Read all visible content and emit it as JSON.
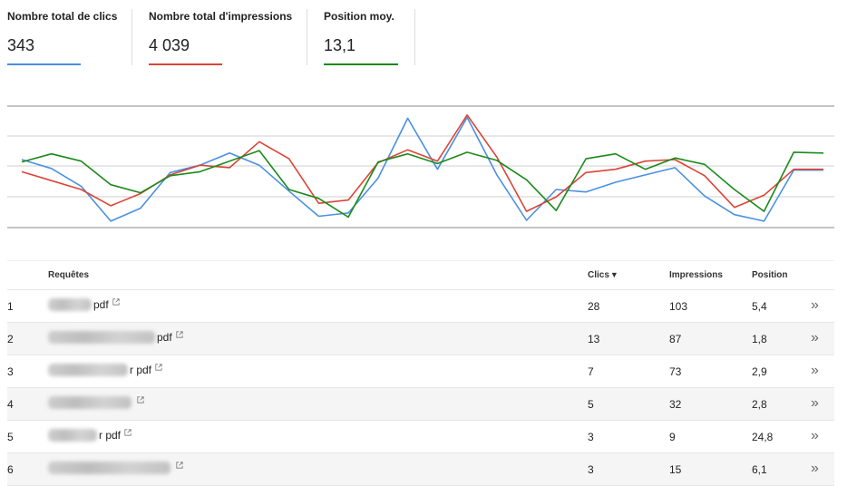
{
  "metrics": [
    {
      "label": "Nombre total de clics",
      "value": "343",
      "color": "#4a90e2"
    },
    {
      "label": "Nombre total d'impressions",
      "value": "4 039",
      "color": "#db4437"
    },
    {
      "label": "Position moy.",
      "value": "13,1",
      "color": "#1a8a1a"
    }
  ],
  "chart_data": {
    "type": "line",
    "grid": true,
    "series": [
      {
        "color": "#4a90e2",
        "values": [
          64,
          53,
          31,
          -12,
          4,
          48,
          57,
          72,
          57,
          25,
          -6,
          -2,
          41,
          115,
          52,
          116,
          45,
          -11,
          27,
          24,
          36,
          45,
          54,
          19,
          -4,
          -12,
          51,
          51
        ]
      },
      {
        "color": "#db4437",
        "values": [
          49,
          38,
          27,
          7,
          22,
          45,
          57,
          54,
          86,
          65,
          10,
          14,
          60,
          76,
          62,
          119,
          67,
          0,
          18,
          48,
          52,
          62,
          64,
          44,
          5,
          20,
          52,
          52
        ]
      },
      {
        "color": "#1a8a1a",
        "values": [
          61,
          71,
          62,
          33,
          23,
          44,
          49,
          62,
          75,
          27,
          16,
          -7,
          61,
          71,
          59,
          73,
          63,
          39,
          1,
          65,
          71,
          52,
          66,
          58,
          27,
          0,
          73,
          72
        ]
      }
    ]
  },
  "table": {
    "headers": {
      "query": "Requêtes",
      "clics": "Clics",
      "sort_arrow": "▼",
      "impressions": "Impressions",
      "position": "Position"
    },
    "rows": [
      {
        "num": "1",
        "suffix": "pdf",
        "clics": "28",
        "impressions": "103",
        "position": "5,4"
      },
      {
        "num": "2",
        "suffix": "pdf",
        "clics": "13",
        "impressions": "87",
        "position": "1,8"
      },
      {
        "num": "3",
        "suffix": "r pdf",
        "clics": "7",
        "impressions": "73",
        "position": "2,9"
      },
      {
        "num": "4",
        "suffix": "",
        "clics": "5",
        "impressions": "32",
        "position": "2,8"
      },
      {
        "num": "5",
        "suffix": "r pdf",
        "clics": "3",
        "impressions": "9",
        "position": "24,8"
      },
      {
        "num": "6",
        "suffix": "",
        "clics": "3",
        "impressions": "15",
        "position": "6,1"
      }
    ],
    "more_icon": "»"
  }
}
